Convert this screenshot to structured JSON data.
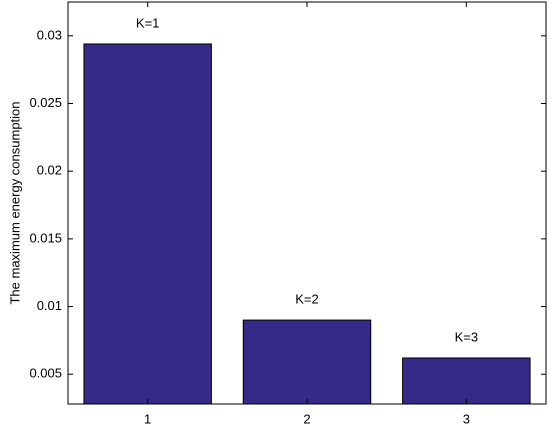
{
  "chart_data": {
    "type": "bar",
    "ylabel": "The maximum energy consumption",
    "categories": [
      "1",
      "2",
      "3"
    ],
    "values": [
      0.0294,
      0.009,
      0.0062
    ],
    "annotations": [
      "K=1",
      "K=2",
      "K=3"
    ],
    "color": "#352a87",
    "ylim": [
      0.0028,
      0.0325
    ],
    "yticks": [
      0.005,
      0.01,
      0.015,
      0.02,
      0.025,
      0.03
    ],
    "grid": false
  }
}
